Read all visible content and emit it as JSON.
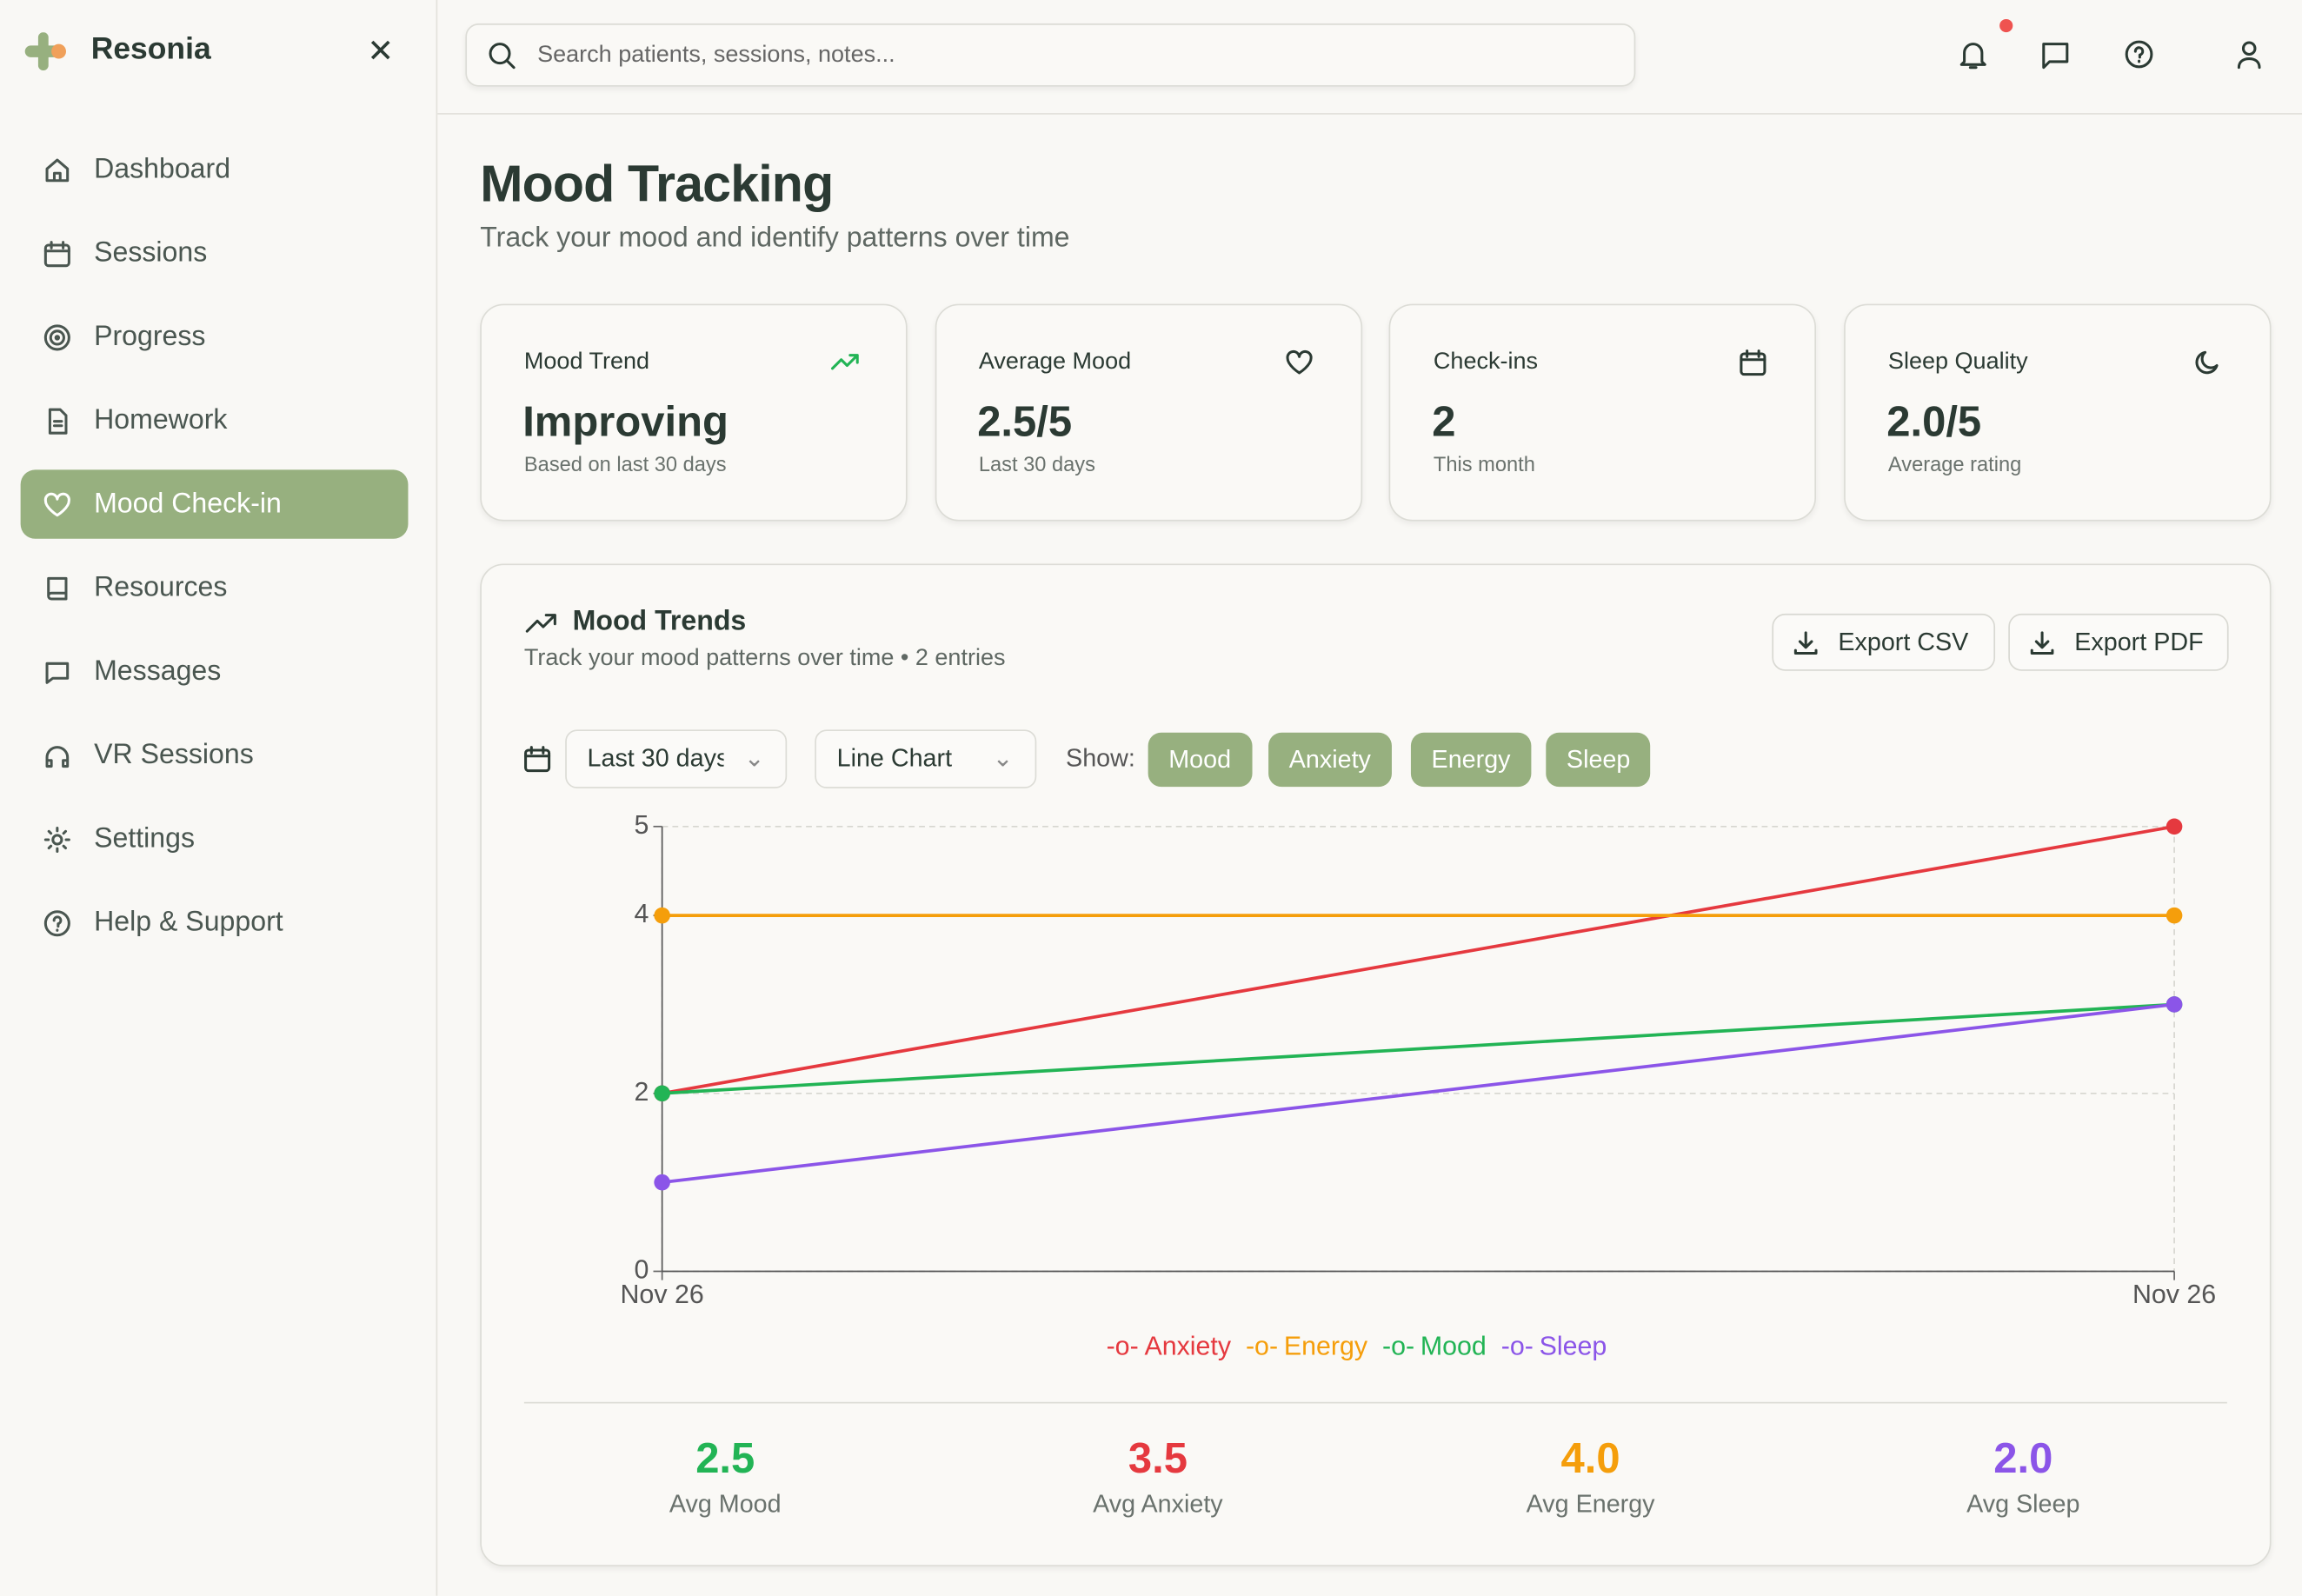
{
  "sidebar": {
    "brand": "Resonia",
    "nav": [
      "Dashboard",
      "Sessions",
      "Progress",
      "Homework",
      "Mood Check-in",
      "Resources",
      "Messages",
      "VR Sessions",
      "Settings",
      "Help & Support"
    ]
  },
  "search_placeholder": "Search patients, sessions, notes...",
  "header": {
    "title": "Mood Tracking",
    "subtitle": "Track your mood and identify patterns over time"
  },
  "stats": [
    {
      "label": "Mood Trend",
      "value": "Improving",
      "note": "Based on last 30 days"
    },
    {
      "label": "Average Mood",
      "value": "2.5/5",
      "note": "Last 30 days"
    },
    {
      "label": "Check-ins",
      "value": "2",
      "note": "This month"
    },
    {
      "label": "Sleep Quality",
      "value": "2.0/5",
      "note": "Average rating"
    }
  ],
  "chart_card": {
    "title": "Mood Trends",
    "subtitle": "Track your mood patterns over time • 2 entries",
    "buttons": [
      "Export CSV",
      "Export PDF"
    ],
    "range": "Last 30 days",
    "chart_kind": "Line Chart",
    "show_label": "Show:",
    "toggles": [
      "Mood",
      "Anxiety",
      "Energy",
      "Sleep"
    ]
  },
  "chart_data": {
    "type": "line",
    "categories": [
      "Nov 26",
      "Nov 26"
    ],
    "series": [
      {
        "name": "Anxiety",
        "color": "#e5393f",
        "values": [
          2,
          5
        ]
      },
      {
        "name": "Energy",
        "color": "#f59e0b",
        "values": [
          4,
          4
        ]
      },
      {
        "name": "Mood",
        "color": "#22b455",
        "values": [
          2,
          3
        ]
      },
      {
        "name": "Sleep",
        "color": "#8b55e8",
        "values": [
          1,
          3
        ]
      }
    ],
    "ylim": [
      0,
      5
    ],
    "yticks": [
      0,
      2,
      4,
      5
    ],
    "grid": true
  },
  "averages": [
    {
      "value": "2.5",
      "label": "Avg Mood",
      "color": "#22b455"
    },
    {
      "value": "3.5",
      "label": "Avg Anxiety",
      "color": "#e5393f"
    },
    {
      "value": "4.0",
      "label": "Avg Energy",
      "color": "#f59e0b"
    },
    {
      "value": "2.0",
      "label": "Avg Sleep",
      "color": "#8b55e8"
    }
  ]
}
